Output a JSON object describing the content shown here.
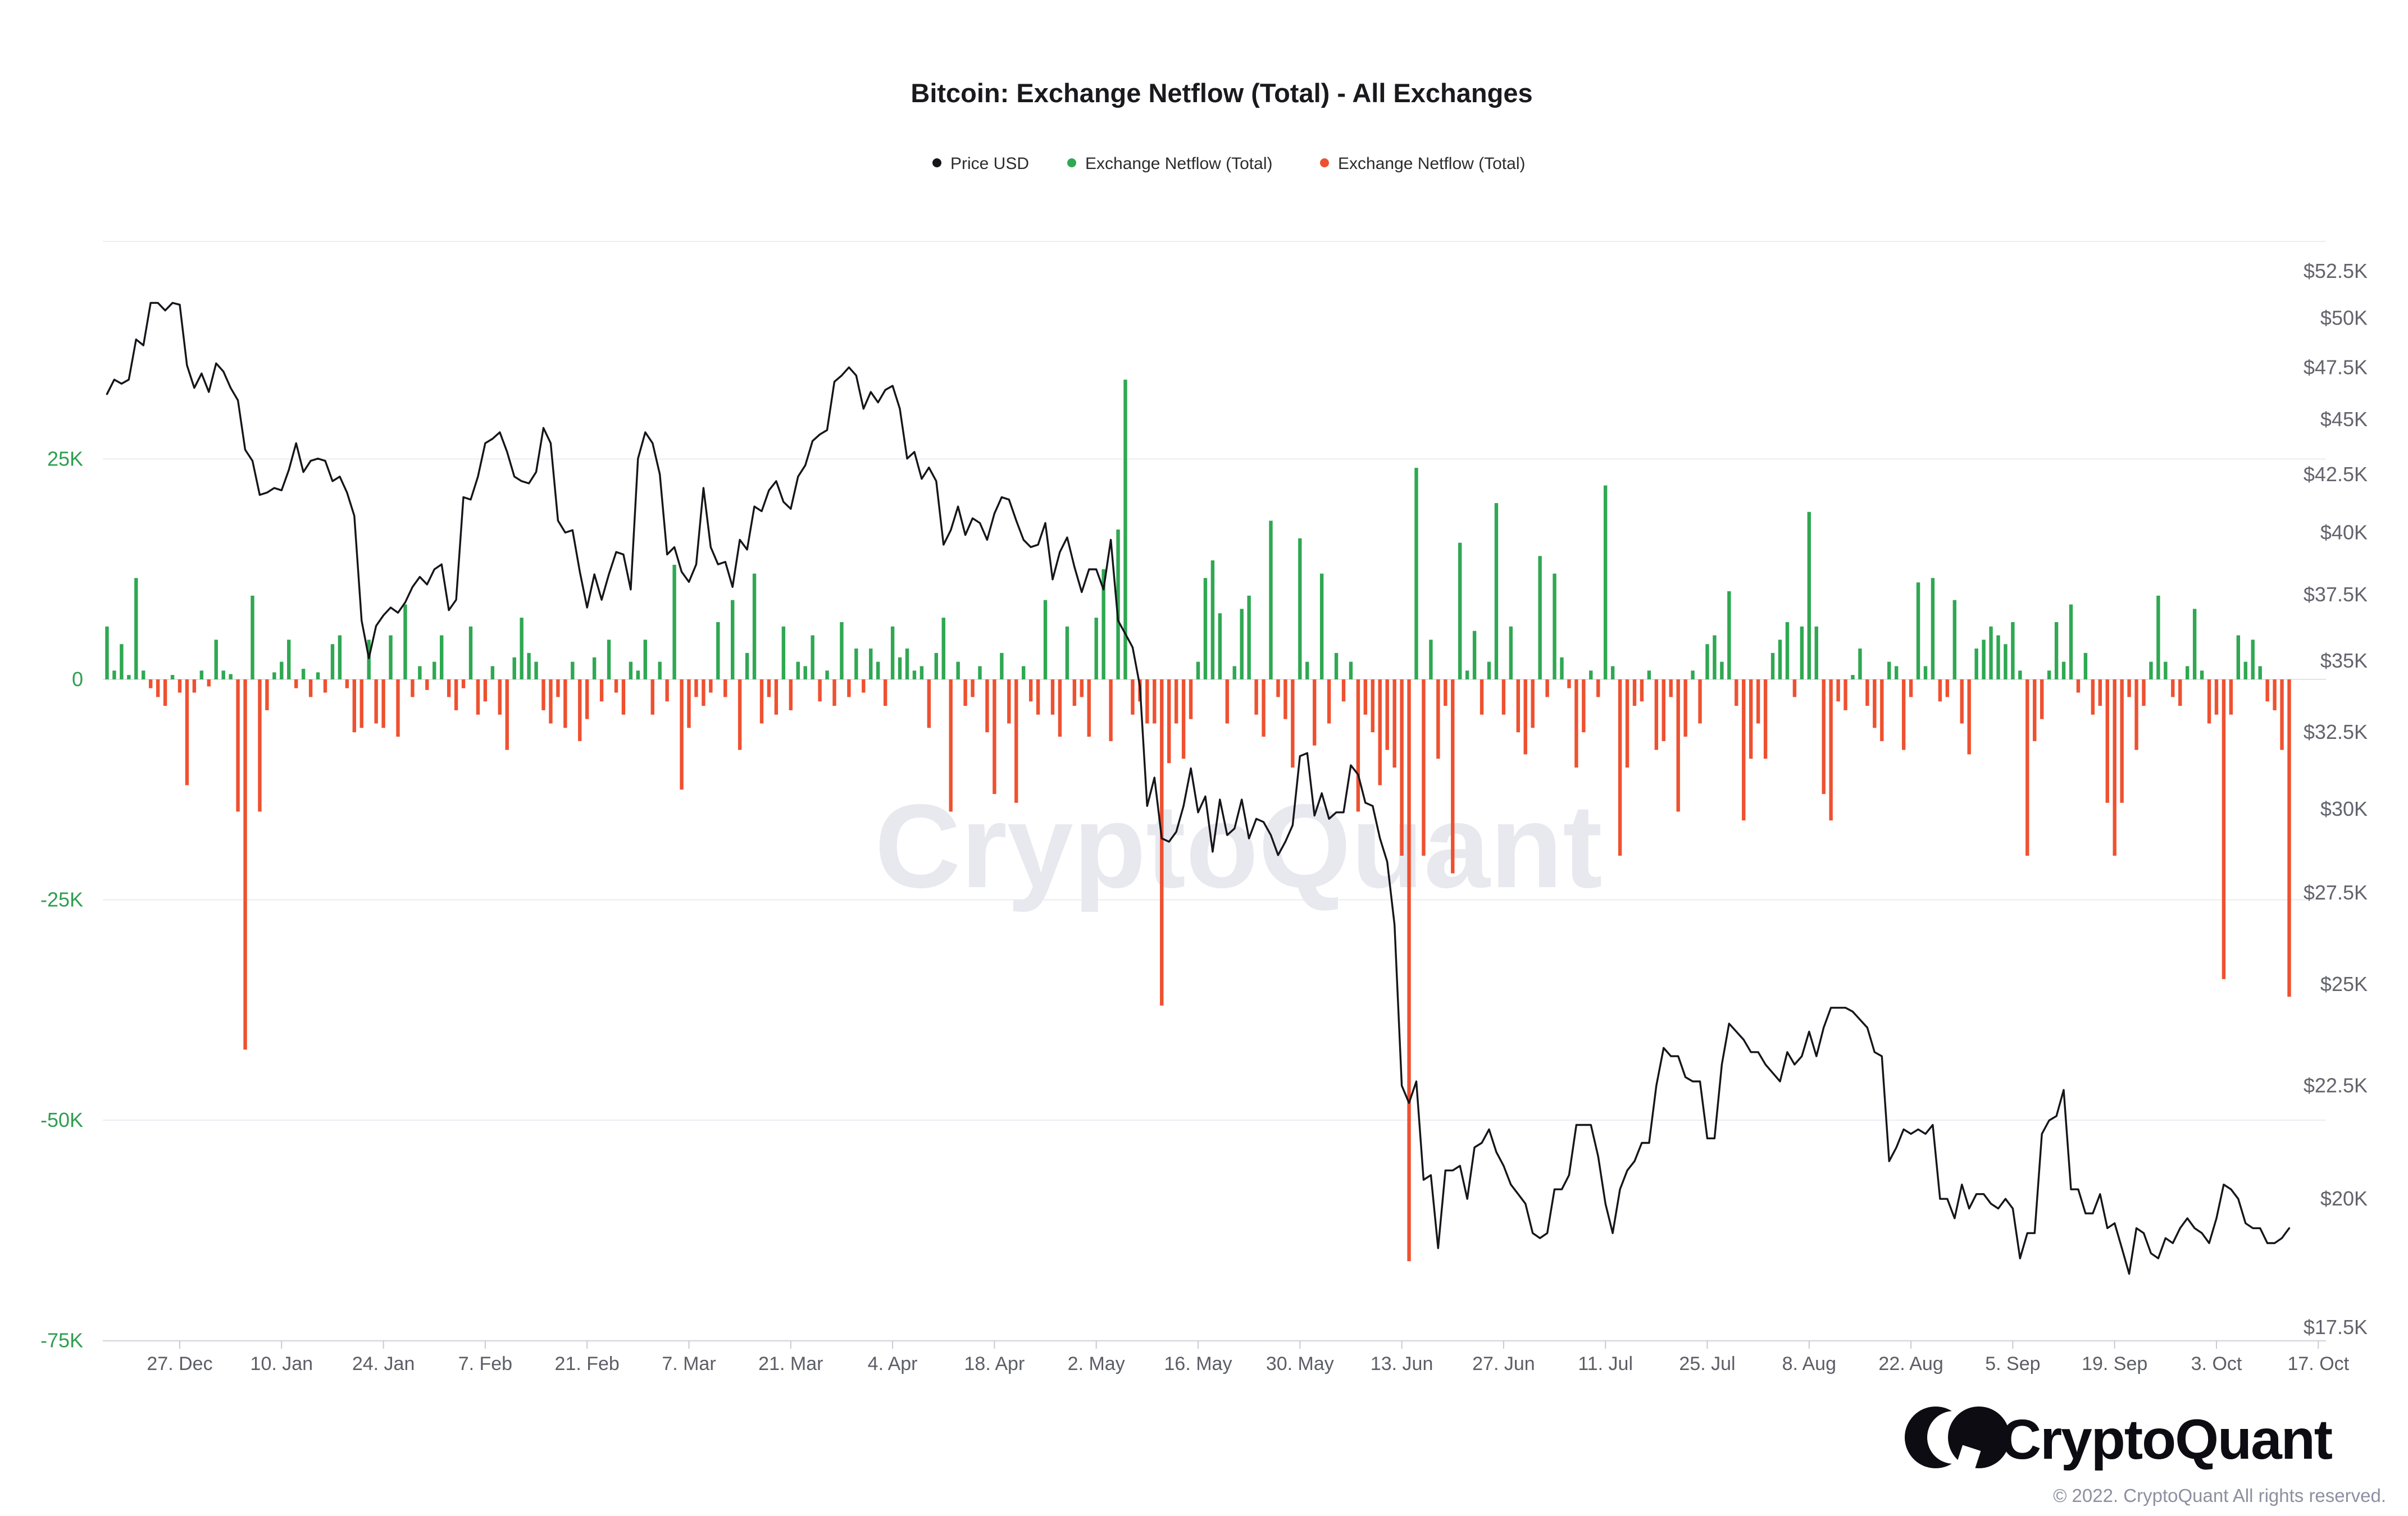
{
  "title": "Bitcoin: Exchange Netflow (Total) - All Exchanges",
  "legend": {
    "items": [
      {
        "label": "Price USD",
        "color": "#15151a"
      },
      {
        "label": "Exchange Netflow (Total)",
        "color": "#2fa852"
      },
      {
        "label": "Exchange Netflow (Total)",
        "color": "#ee5130"
      }
    ]
  },
  "watermark": "CryptoQuant",
  "footer": {
    "brand": "CryptoQuant",
    "copyright": "© 2022. CryptoQuant All rights reserved."
  },
  "colors": {
    "price_line": "#15151a",
    "netflow_positive": "#2fa852",
    "netflow_negative": "#ee5130",
    "left_axis_label": "#2f9e50",
    "right_axis_label": "#63636d",
    "x_axis_label": "#5c5d66",
    "gridline": "#ececf2",
    "axis_line": "#d9d9e0",
    "watermark": "#e8e8ef"
  },
  "chart_data": {
    "type": "bar+line",
    "title": "Bitcoin: Exchange Netflow (Total) - All Exchanges",
    "start_date": "2021-12-17",
    "end_date": "2022-10-13",
    "grid": "horizontal",
    "legend_position": "top",
    "x_tick_labels": [
      "27. Dec",
      "10. Jan",
      "24. Jan",
      "7. Feb",
      "21. Feb",
      "7. Mar",
      "21. Mar",
      "4. Apr",
      "18. Apr",
      "2. May",
      "16. May",
      "30. May",
      "13. Jun",
      "27. Jun",
      "11. Jul",
      "25. Jul",
      "8. Aug",
      "22. Aug",
      "5. Sep",
      "19. Sep",
      "3. Oct",
      "17. Oct"
    ],
    "left_axis": {
      "unit": "BTC",
      "scale": "linear",
      "tick_labels": [
        "25K",
        "0",
        "-25K",
        "-50K",
        "-75K"
      ],
      "tick_values_k": [
        25,
        0,
        -25,
        -50,
        -75
      ],
      "range_k": [
        -75,
        50
      ]
    },
    "right_axis": {
      "unit": "USD",
      "scale": "log",
      "tick_labels": [
        "$52.5K",
        "$50K",
        "$47.5K",
        "$45K",
        "$42.5K",
        "$40K",
        "$37.5K",
        "$35K",
        "$32.5K",
        "$30K",
        "$27.5K",
        "$25K",
        "$22.5K",
        "$20K",
        "$17.5K"
      ],
      "tick_values_k": [
        52.5,
        50,
        47.5,
        45,
        42.5,
        40,
        37.5,
        35,
        32.5,
        30,
        27.5,
        25,
        22.5,
        20,
        17.5
      ],
      "range_k": [
        17.5,
        55
      ]
    },
    "series": [
      {
        "name": "Price USD",
        "type": "line",
        "axis": "right",
        "color": "#15151a",
        "unit": "thousand USD",
        "values": [
          46.2,
          46.9,
          46.7,
          46.9,
          48.9,
          48.6,
          50.8,
          50.8,
          50.4,
          50.8,
          50.7,
          47.6,
          46.5,
          47.2,
          46.3,
          47.7,
          47.3,
          46.5,
          45.9,
          43.6,
          43.1,
          41.6,
          41.7,
          41.9,
          41.8,
          42.7,
          43.9,
          42.6,
          43.1,
          43.2,
          43.1,
          42.2,
          42.4,
          41.7,
          40.7,
          36.5,
          35.1,
          36.3,
          36.7,
          37.0,
          36.8,
          37.2,
          37.8,
          38.2,
          37.9,
          38.5,
          38.7,
          36.9,
          37.3,
          41.5,
          41.4,
          42.4,
          43.9,
          44.1,
          44.4,
          43.5,
          42.4,
          42.2,
          42.1,
          42.6,
          44.6,
          43.9,
          40.5,
          40.0,
          40.1,
          38.4,
          37.0,
          38.3,
          37.3,
          38.3,
          39.2,
          39.1,
          37.7,
          43.2,
          44.4,
          43.9,
          42.5,
          39.1,
          39.4,
          38.4,
          38.0,
          38.7,
          41.9,
          39.4,
          38.7,
          38.8,
          37.8,
          39.7,
          39.3,
          41.1,
          40.9,
          41.8,
          42.2,
          41.3,
          41.0,
          42.4,
          42.9,
          44.0,
          44.3,
          44.5,
          46.8,
          47.1,
          47.5,
          47.1,
          45.5,
          46.3,
          45.8,
          46.4,
          46.6,
          45.5,
          43.2,
          43.5,
          42.3,
          42.8,
          42.2,
          39.5,
          40.1,
          41.1,
          39.9,
          40.6,
          40.4,
          39.7,
          40.8,
          41.5,
          41.4,
          40.5,
          39.7,
          39.4,
          39.5,
          40.4,
          38.1,
          39.2,
          39.8,
          38.6,
          37.6,
          38.5,
          38.5,
          37.7,
          39.7,
          36.5,
          36.0,
          35.5,
          34.1,
          30.1,
          31.0,
          29.1,
          29.0,
          29.3,
          30.1,
          31.3,
          29.9,
          30.4,
          28.7,
          30.3,
          29.2,
          29.4,
          30.3,
          29.1,
          29.7,
          29.6,
          29.2,
          28.6,
          29.0,
          29.5,
          31.7,
          31.8,
          29.8,
          30.5,
          29.7,
          29.9,
          29.9,
          31.4,
          31.1,
          30.2,
          30.1,
          29.1,
          28.4,
          26.6,
          22.5,
          22.1,
          22.6,
          20.4,
          20.5,
          19.0,
          20.6,
          20.6,
          20.7,
          20.0,
          21.1,
          21.2,
          21.5,
          21.0,
          20.7,
          20.3,
          20.1,
          19.9,
          19.3,
          19.2,
          19.3,
          20.2,
          20.2,
          20.5,
          21.6,
          21.6,
          21.6,
          20.9,
          19.9,
          19.3,
          20.2,
          20.6,
          20.8,
          21.2,
          21.2,
          22.5,
          23.4,
          23.2,
          23.2,
          22.7,
          22.6,
          22.6,
          21.3,
          21.3,
          23.0,
          24.0,
          23.8,
          23.6,
          23.3,
          23.3,
          23.0,
          22.8,
          22.6,
          23.3,
          23.0,
          23.2,
          23.8,
          23.2,
          23.9,
          24.4,
          24.4,
          24.4,
          24.3,
          24.1,
          23.9,
          23.3,
          23.2,
          20.8,
          21.1,
          21.5,
          21.4,
          21.5,
          21.4,
          21.6,
          20.0,
          20.0,
          19.6,
          20.3,
          19.8,
          20.1,
          20.1,
          19.9,
          19.8,
          20.0,
          19.8,
          18.8,
          19.3,
          19.3,
          21.4,
          21.7,
          21.8,
          22.4,
          20.2,
          20.2,
          19.7,
          19.7,
          20.1,
          19.4,
          19.5,
          19.0,
          18.5,
          19.4,
          19.3,
          18.9,
          18.8,
          19.2,
          19.1,
          19.4,
          19.6,
          19.4,
          19.3,
          19.1,
          19.6,
          20.3,
          20.2,
          20.0,
          19.5,
          19.4,
          19.4,
          19.1,
          19.1,
          19.2,
          19.4
        ]
      },
      {
        "name": "Exchange Netflow (Total)",
        "type": "bar",
        "axis": "left",
        "positive_color": "#2fa852",
        "negative_color": "#ee5130",
        "unit": "thousand BTC",
        "values": [
          6,
          1,
          4,
          0.5,
          11.5,
          1,
          -1,
          -2,
          -3,
          0.5,
          -1.5,
          -12,
          -1.5,
          1,
          -0.8,
          4.5,
          1,
          0.6,
          -15,
          -42,
          9.5,
          -15,
          -3.5,
          0.8,
          2,
          4.5,
          -1,
          1.2,
          -2,
          0.8,
          -1.5,
          4,
          5,
          -1,
          -6,
          -5.5,
          4.5,
          -5,
          -5.5,
          5,
          -6.5,
          8.5,
          -2,
          1.5,
          -1.2,
          2,
          5,
          -2,
          -3.5,
          -1,
          6,
          -4,
          -2.5,
          1.5,
          -4,
          -8,
          2.5,
          7,
          3,
          2,
          -3.5,
          -5,
          -2,
          -5.5,
          2,
          -7,
          -4.5,
          2.5,
          -2.5,
          4.5,
          -1.5,
          -4,
          2,
          1,
          4.5,
          -4,
          2,
          -2.5,
          13,
          -12.5,
          -5.5,
          -2,
          -3,
          -1.5,
          6.5,
          -2,
          9,
          -8,
          3,
          12,
          -5,
          -2,
          -4,
          6,
          -3.5,
          2,
          1.5,
          5,
          -2.5,
          1,
          -3,
          6.5,
          -2,
          3.5,
          -1.5,
          3.5,
          2,
          -3,
          6,
          2.5,
          3.5,
          1,
          1.5,
          -5.5,
          3,
          7,
          -15,
          2,
          -3,
          -2,
          1.5,
          -6,
          -13,
          3,
          -5,
          -14,
          1.5,
          -2.5,
          -4,
          9,
          -4,
          -6.5,
          6,
          -3,
          -2,
          -6.5,
          7,
          12.5,
          -7,
          17,
          34,
          -4,
          -2.5,
          -5,
          -5,
          -37,
          -9.5,
          -5,
          -9,
          -4.5,
          2,
          11.5,
          13.5,
          7.5,
          -5,
          1.5,
          8,
          9.5,
          -4,
          -6.5,
          18,
          -2,
          -4.5,
          -10,
          16,
          2,
          -7.5,
          12,
          -5,
          3,
          -2.5,
          2,
          -15,
          -4,
          -6,
          -12,
          -8,
          -10,
          -20,
          -66,
          24,
          -20,
          4.5,
          -9,
          -3,
          -22,
          15.5,
          1,
          5.5,
          -4,
          2,
          20,
          -4,
          6,
          -6,
          -8.5,
          -5.5,
          14,
          -2,
          12,
          2.5,
          -1,
          -10,
          -6,
          1,
          -2,
          22,
          1.5,
          -20,
          -10,
          -3,
          -2.5,
          1,
          -8,
          -7,
          -2,
          -15,
          -6.5,
          1,
          -5,
          4,
          5,
          2,
          10,
          -3,
          -16,
          -9,
          -5,
          -9,
          3,
          4.5,
          6.5,
          -2,
          6,
          19,
          6,
          -13,
          -16,
          -2.5,
          -3.5,
          0.5,
          3.5,
          -3,
          -5.5,
          -7,
          2,
          1.5,
          -8,
          -2,
          11,
          1.5,
          11.5,
          -2.5,
          -2,
          9,
          -5,
          -8.5,
          3.5,
          4.5,
          6,
          5,
          4,
          6.5,
          1,
          -20,
          -7,
          -4.5,
          1,
          6.5,
          2,
          8.5,
          -1.5,
          3,
          -4,
          -3,
          -14,
          -20,
          -14,
          -2,
          -8,
          -3,
          2,
          9.5,
          2,
          -2,
          -3,
          1.5,
          8,
          1,
          -5,
          -4,
          -34,
          -4,
          5,
          2,
          4.5,
          1.5,
          -2.5,
          -3.5,
          -8,
          -36
        ]
      }
    ]
  }
}
